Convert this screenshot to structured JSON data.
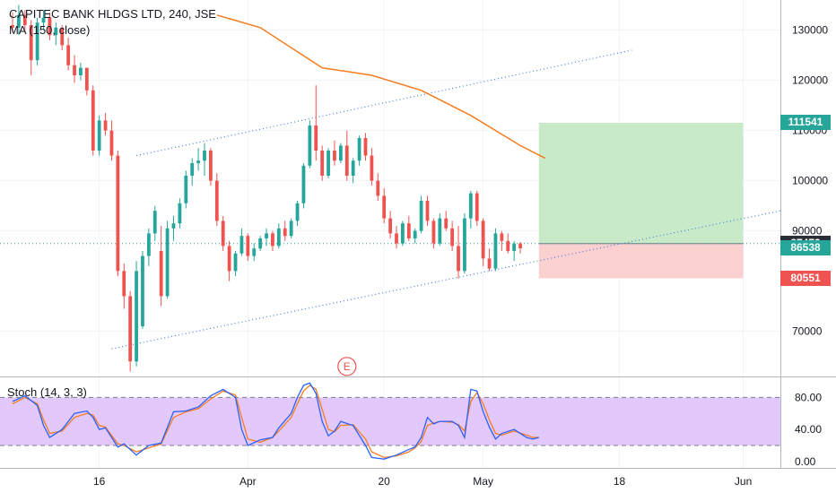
{
  "header": {
    "symbol_line": "CAPITEC BANK HLDGS LTD, 240, JSE",
    "indicator_line": "MA (150, close)",
    "stoch_label": "Stoch (14, 3, 3)"
  },
  "colors": {
    "up": "#26a69a",
    "down": "#ef5350",
    "ma": "#f57c20",
    "trend": "#4a7fd6",
    "profit_zone": "#c9eac9",
    "loss_zone": "#fbd0d0",
    "stoch_k": "#2962ff",
    "stoch_d": "#f57c20",
    "stoch_band": "#e3c9fb"
  },
  "event_marker": {
    "label": "E"
  },
  "price_tags": [
    {
      "label": "111541",
      "value": 111541,
      "color": "#26a69a"
    },
    {
      "label": "87473",
      "value": 87473,
      "color": "#2a2e39"
    },
    {
      "label": "86538",
      "value": 86538,
      "color": "#26a69a"
    },
    {
      "label": "80551",
      "value": 80551,
      "color": "#ef5350"
    }
  ],
  "chart_data": {
    "type": "candlestick",
    "price_axis": {
      "ticks": [
        {
          "value": 70000,
          "label": "70000"
        },
        {
          "value": 90000,
          "label": "90000"
        },
        {
          "value": 100000,
          "label": "100000"
        },
        {
          "value": 110000,
          "label": "110000"
        },
        {
          "value": 120000,
          "label": "120000"
        },
        {
          "value": 130000,
          "label": "130000"
        }
      ],
      "range": [
        61000,
        136000
      ]
    },
    "time_axis": {
      "labels": [
        "16",
        "Apr",
        "20",
        "May",
        "18",
        "Jun"
      ],
      "label_index": [
        14,
        38,
        60,
        76,
        98,
        118
      ],
      "range": [
        0,
        124
      ]
    },
    "candles": [
      [
        131000,
        133500,
        129500,
        130500
      ],
      [
        130500,
        135000,
        129000,
        133000
      ],
      [
        133000,
        134000,
        130000,
        131000
      ],
      [
        131000,
        132000,
        121000,
        124000
      ],
      [
        124000,
        132500,
        123000,
        131500
      ],
      [
        131500,
        134000,
        130000,
        132500
      ],
      [
        132500,
        133500,
        128000,
        129000
      ],
      [
        129000,
        131500,
        127000,
        130500
      ],
      [
        130500,
        131000,
        126000,
        127000
      ],
      [
        127000,
        128500,
        122000,
        123000
      ],
      [
        123000,
        125000,
        119500,
        121000
      ],
      [
        121000,
        123500,
        120000,
        122500
      ],
      [
        122500,
        122500,
        117000,
        118000
      ],
      [
        118000,
        119000,
        105000,
        106000
      ],
      [
        106000,
        113000,
        105000,
        112000
      ],
      [
        112000,
        113500,
        109000,
        110000
      ],
      [
        110000,
        112000,
        104000,
        105000
      ],
      [
        105000,
        106000,
        81000,
        82000
      ],
      [
        82000,
        83500,
        74500,
        77000
      ],
      [
        77000,
        78000,
        62000,
        64000
      ],
      [
        64000,
        84000,
        63000,
        82000
      ],
      [
        71000,
        86000,
        70500,
        85000
      ],
      [
        85000,
        90500,
        83000,
        89500
      ],
      [
        89500,
        95000,
        88000,
        94000
      ],
      [
        86000,
        91000,
        75000,
        77000
      ],
      [
        77000,
        92000,
        76500,
        90500
      ],
      [
        90500,
        93000,
        88000,
        91500
      ],
      [
        91500,
        96500,
        90500,
        95500
      ],
      [
        95500,
        102000,
        94500,
        101000
      ],
      [
        101000,
        104500,
        99000,
        103500
      ],
      [
        103500,
        106500,
        102000,
        104000
      ],
      [
        104000,
        107500,
        101000,
        106000
      ],
      [
        106000,
        106500,
        99000,
        100000
      ],
      [
        100000,
        101500,
        91000,
        92000
      ],
      [
        92000,
        93000,
        86000,
        87000
      ],
      [
        87000,
        88000,
        80000,
        82000
      ],
      [
        82000,
        86000,
        81000,
        85500
      ],
      [
        85500,
        90500,
        85000,
        89000
      ],
      [
        89000,
        89500,
        84000,
        85000
      ],
      [
        85000,
        87500,
        84000,
        86500
      ],
      [
        86500,
        89000,
        86000,
        88500
      ],
      [
        88500,
        90500,
        87000,
        89500
      ],
      [
        89500,
        90000,
        86000,
        87000
      ],
      [
        87000,
        91500,
        86500,
        90500
      ],
      [
        90500,
        92000,
        88000,
        89000
      ],
      [
        89000,
        92500,
        88500,
        92000
      ],
      [
        92000,
        96000,
        91000,
        95500
      ],
      [
        95500,
        103500,
        94500,
        103000
      ],
      [
        103000,
        112000,
        102500,
        111000
      ],
      [
        111000,
        119000,
        104000,
        106000
      ],
      [
        106000,
        107000,
        100000,
        101000
      ],
      [
        101000,
        106500,
        100500,
        106000
      ],
      [
        106000,
        108000,
        103000,
        104000
      ],
      [
        104000,
        107500,
        103500,
        107000
      ],
      [
        107000,
        110000,
        100000,
        101000
      ],
      [
        101000,
        104500,
        99500,
        104000
      ],
      [
        104000,
        109000,
        103000,
        108500
      ],
      [
        108500,
        109500,
        104000,
        105000
      ],
      [
        105000,
        106500,
        99000,
        100000
      ],
      [
        100000,
        101500,
        96000,
        97000
      ],
      [
        97000,
        98500,
        91500,
        92500
      ],
      [
        92500,
        94000,
        88500,
        89500
      ],
      [
        89500,
        91000,
        86500,
        87500
      ],
      [
        87500,
        92000,
        87000,
        91500
      ],
      [
        91500,
        93000,
        88000,
        88500
      ],
      [
        88500,
        90500,
        87500,
        90000
      ],
      [
        90000,
        97000,
        89500,
        96000
      ],
      [
        96000,
        97000,
        91000,
        92000
      ],
      [
        92000,
        92500,
        86500,
        87500
      ],
      [
        87500,
        93500,
        87000,
        92500
      ],
      [
        92500,
        94000,
        90000,
        90500
      ],
      [
        90500,
        92000,
        86000,
        87000
      ],
      [
        87000,
        91000,
        80500,
        82000
      ],
      [
        82000,
        93500,
        81500,
        92500
      ],
      [
        92500,
        98000,
        90500,
        97500
      ],
      [
        97500,
        98000,
        91000,
        92000
      ],
      [
        92000,
        92500,
        83000,
        84500
      ],
      [
        84500,
        86500,
        82000,
        82500
      ],
      [
        82500,
        90500,
        82000,
        89500
      ],
      [
        89500,
        90000,
        86000,
        88000
      ],
      [
        88000,
        89500,
        85500,
        86000
      ],
      [
        86000,
        88000,
        84000,
        87500
      ],
      [
        87500,
        87800,
        85500,
        86538
      ]
    ],
    "moving_average": {
      "name": "MA (150, close)",
      "points": [
        [
          33,
          133000
        ],
        [
          40,
          130500
        ],
        [
          50,
          122500
        ],
        [
          58,
          121000
        ],
        [
          66,
          118000
        ],
        [
          74,
          113000
        ],
        [
          82,
          107000
        ],
        [
          86,
          104500
        ]
      ]
    },
    "trend_lines": [
      {
        "from": [
          20,
          105000
        ],
        "to": [
          100,
          126000
        ]
      },
      {
        "from": [
          16,
          66500
        ],
        "to": [
          124,
          94000
        ]
      }
    ],
    "reference_line": 87473,
    "position": {
      "x_start": 85,
      "x_end": 118,
      "entry": 87473,
      "target": 111541,
      "stop": 80551
    },
    "event_marker_at": [
      54,
      63000
    ],
    "stoch_axis": {
      "ticks": [
        {
          "value": 0,
          "label": "0.00"
        },
        {
          "value": 40,
          "label": "40.00"
        },
        {
          "value": 80,
          "label": "80.00"
        }
      ],
      "range": [
        -8,
        105
      ],
      "band": [
        20,
        80
      ]
    },
    "stoch_k": [
      [
        0,
        75
      ],
      [
        2,
        82
      ],
      [
        4,
        70
      ],
      [
        5,
        45
      ],
      [
        6,
        30
      ],
      [
        8,
        40
      ],
      [
        10,
        60
      ],
      [
        12,
        63
      ],
      [
        13,
        55
      ],
      [
        14,
        40
      ],
      [
        15,
        42
      ],
      [
        17,
        18
      ],
      [
        18,
        22
      ],
      [
        20,
        8
      ],
      [
        22,
        20
      ],
      [
        24,
        23
      ],
      [
        26,
        62
      ],
      [
        28,
        63
      ],
      [
        30,
        68
      ],
      [
        32,
        82
      ],
      [
        34,
        90
      ],
      [
        36,
        80
      ],
      [
        37,
        40
      ],
      [
        38,
        20
      ],
      [
        40,
        27
      ],
      [
        42,
        30
      ],
      [
        43,
        42
      ],
      [
        45,
        60
      ],
      [
        46,
        80
      ],
      [
        47,
        95
      ],
      [
        48,
        98
      ],
      [
        49,
        85
      ],
      [
        50,
        50
      ],
      [
        51,
        32
      ],
      [
        52,
        38
      ],
      [
        53,
        50
      ],
      [
        55,
        45
      ],
      [
        57,
        20
      ],
      [
        58,
        5
      ],
      [
        60,
        3
      ],
      [
        62,
        8
      ],
      [
        64,
        15
      ],
      [
        65,
        18
      ],
      [
        66,
        30
      ],
      [
        67,
        55
      ],
      [
        68,
        47
      ],
      [
        69,
        50
      ],
      [
        71,
        50
      ],
      [
        72,
        45
      ],
      [
        73,
        30
      ],
      [
        74,
        90
      ],
      [
        75,
        88
      ],
      [
        76,
        62
      ],
      [
        77,
        43
      ],
      [
        78,
        28
      ],
      [
        79,
        35
      ],
      [
        81,
        40
      ],
      [
        83,
        30
      ],
      [
        84,
        28
      ],
      [
        85,
        30
      ]
    ],
    "stoch_d": [
      [
        0,
        72
      ],
      [
        2,
        80
      ],
      [
        4,
        72
      ],
      [
        5,
        52
      ],
      [
        6,
        35
      ],
      [
        8,
        38
      ],
      [
        10,
        55
      ],
      [
        12,
        60
      ],
      [
        13,
        58
      ],
      [
        14,
        45
      ],
      [
        15,
        43
      ],
      [
        17,
        22
      ],
      [
        18,
        20
      ],
      [
        20,
        12
      ],
      [
        22,
        17
      ],
      [
        24,
        22
      ],
      [
        26,
        55
      ],
      [
        28,
        62
      ],
      [
        30,
        66
      ],
      [
        32,
        78
      ],
      [
        34,
        88
      ],
      [
        36,
        83
      ],
      [
        37,
        55
      ],
      [
        38,
        28
      ],
      [
        40,
        24
      ],
      [
        42,
        30
      ],
      [
        43,
        38
      ],
      [
        45,
        55
      ],
      [
        46,
        72
      ],
      [
        47,
        88
      ],
      [
        48,
        95
      ],
      [
        49,
        90
      ],
      [
        50,
        65
      ],
      [
        51,
        40
      ],
      [
        52,
        37
      ],
      [
        53,
        45
      ],
      [
        55,
        46
      ],
      [
        57,
        28
      ],
      [
        58,
        12
      ],
      [
        60,
        5
      ],
      [
        62,
        7
      ],
      [
        64,
        12
      ],
      [
        65,
        17
      ],
      [
        66,
        25
      ],
      [
        67,
        45
      ],
      [
        68,
        48
      ],
      [
        69,
        50
      ],
      [
        71,
        49
      ],
      [
        72,
        46
      ],
      [
        73,
        38
      ],
      [
        74,
        75
      ],
      [
        75,
        86
      ],
      [
        76,
        72
      ],
      [
        77,
        52
      ],
      [
        78,
        35
      ],
      [
        79,
        33
      ],
      [
        81,
        38
      ],
      [
        83,
        33
      ],
      [
        84,
        30
      ],
      [
        85,
        30
      ]
    ]
  }
}
